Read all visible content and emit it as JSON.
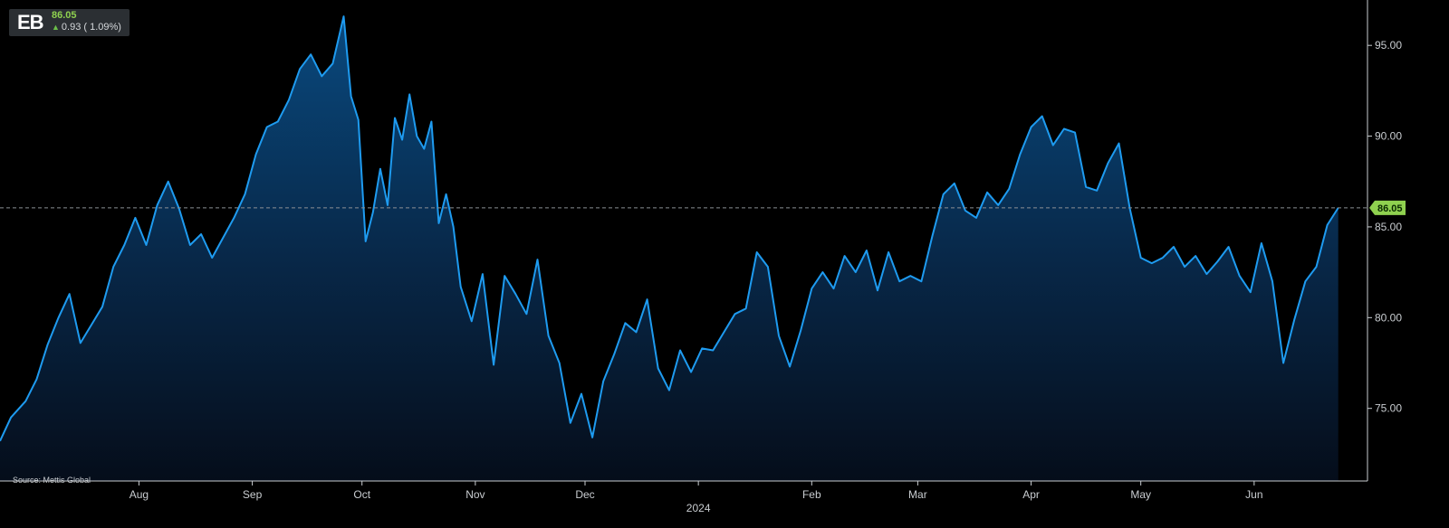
{
  "ticker": {
    "symbol": "EB",
    "price": "86.05",
    "change_arrow": "up-arrow",
    "change_text": "0.93 ( 1.09%)"
  },
  "source": "Source: Mettis Global",
  "colors": {
    "background": "#000000",
    "line": "#1e9bf0",
    "fill_top": "#0a4d85",
    "fill_bottom": "#050d1a",
    "last_price_badge": "#8fd14f",
    "positive": "#6cc04a"
  },
  "chart_data": {
    "type": "area",
    "title": "",
    "xlabel": "",
    "ylabel": "",
    "ylim": [
      71,
      97.5
    ],
    "y_axis_position": "right",
    "y_ticks": [
      "75.00",
      "80.00",
      "85.00",
      "90.00",
      "95.00"
    ],
    "x_ticks": [
      {
        "label": "Aug",
        "date": "2023-08-01"
      },
      {
        "label": "Sep",
        "date": "2023-09-01"
      },
      {
        "label": "Oct",
        "date": "2023-10-01"
      },
      {
        "label": "Nov",
        "date": "2023-11-01"
      },
      {
        "label": "Dec",
        "date": "2023-12-01"
      },
      {
        "label": "2024",
        "date": "2024-01-01"
      },
      {
        "label": "Feb",
        "date": "2024-02-01"
      },
      {
        "label": "Mar",
        "date": "2024-03-01"
      },
      {
        "label": "Apr",
        "date": "2024-04-01"
      },
      {
        "label": "May",
        "date": "2024-05-01"
      },
      {
        "label": "Jun",
        "date": "2024-06-01"
      }
    ],
    "last_value": 86.05,
    "last_value_label": "86.05",
    "reference_line": {
      "value": 86.05,
      "style": "dashed"
    },
    "grid": false,
    "legend": "none",
    "series": [
      {
        "x": [
          "2023-06-24",
          "2023-06-27",
          "2023-07-01",
          "2023-07-04",
          "2023-07-07",
          "2023-07-10",
          "2023-07-13",
          "2023-07-16",
          "2023-07-19",
          "2023-07-22",
          "2023-07-25",
          "2023-07-28",
          "2023-07-31",
          "2023-08-03",
          "2023-08-06",
          "2023-08-09",
          "2023-08-12",
          "2023-08-15",
          "2023-08-18",
          "2023-08-21",
          "2023-08-24",
          "2023-08-27",
          "2023-08-30",
          "2023-09-02",
          "2023-09-05",
          "2023-09-08",
          "2023-09-11",
          "2023-09-14",
          "2023-09-17",
          "2023-09-20",
          "2023-09-23",
          "2023-09-26",
          "2023-09-28",
          "2023-09-30",
          "2023-10-02",
          "2023-10-04",
          "2023-10-06",
          "2023-10-08",
          "2023-10-10",
          "2023-10-12",
          "2023-10-14",
          "2023-10-16",
          "2023-10-18",
          "2023-10-20",
          "2023-10-22",
          "2023-10-24",
          "2023-10-26",
          "2023-10-28",
          "2023-10-31",
          "2023-11-03",
          "2023-11-06",
          "2023-11-09",
          "2023-11-12",
          "2023-11-15",
          "2023-11-18",
          "2023-11-21",
          "2023-11-24",
          "2023-11-27",
          "2023-11-30",
          "2023-12-03",
          "2023-12-06",
          "2023-12-09",
          "2023-12-12",
          "2023-12-15",
          "2023-12-18",
          "2023-12-21",
          "2023-12-24",
          "2023-12-27",
          "2023-12-30",
          "2024-01-02",
          "2024-01-05",
          "2024-01-08",
          "2024-01-11",
          "2024-01-14",
          "2024-01-17",
          "2024-01-20",
          "2024-01-23",
          "2024-01-26",
          "2024-01-29",
          "2024-02-01",
          "2024-02-04",
          "2024-02-07",
          "2024-02-10",
          "2024-02-13",
          "2024-02-16",
          "2024-02-19",
          "2024-02-22",
          "2024-02-25",
          "2024-02-28",
          "2024-03-02",
          "2024-03-05",
          "2024-03-08",
          "2024-03-11",
          "2024-03-14",
          "2024-03-17",
          "2024-03-20",
          "2024-03-23",
          "2024-03-26",
          "2024-03-29",
          "2024-04-01",
          "2024-04-04",
          "2024-04-07",
          "2024-04-10",
          "2024-04-13",
          "2024-04-16",
          "2024-04-19",
          "2024-04-22",
          "2024-04-25",
          "2024-04-28",
          "2024-05-01",
          "2024-05-04",
          "2024-05-07",
          "2024-05-10",
          "2024-05-13",
          "2024-05-16",
          "2024-05-19",
          "2024-05-22",
          "2024-05-25",
          "2024-05-28",
          "2024-05-31",
          "2024-06-03",
          "2024-06-06",
          "2024-06-09",
          "2024-06-12",
          "2024-06-15",
          "2024-06-18",
          "2024-06-21",
          "2024-06-24"
        ],
        "values": [
          73.2,
          74.5,
          75.4,
          76.6,
          78.5,
          80.0,
          81.3,
          78.6,
          79.6,
          80.6,
          82.8,
          84.0,
          85.5,
          84.0,
          86.2,
          87.5,
          86.0,
          84.0,
          84.6,
          83.3,
          84.4,
          85.5,
          86.8,
          89.0,
          90.5,
          90.8,
          92.0,
          93.7,
          94.5,
          93.3,
          94.0,
          96.6,
          92.2,
          90.9,
          84.2,
          85.8,
          88.2,
          86.2,
          91.0,
          89.8,
          92.3,
          90.0,
          89.3,
          90.8,
          85.2,
          86.8,
          85.0,
          81.7,
          79.8,
          82.4,
          77.4,
          82.3,
          81.3,
          80.2,
          83.2,
          79.0,
          77.5,
          74.2,
          75.8,
          73.4,
          76.5,
          78.0,
          79.7,
          79.2,
          81.0,
          77.2,
          76.0,
          78.2,
          77.0,
          78.3,
          78.2,
          79.2,
          80.2,
          80.5,
          83.6,
          82.8,
          79.0,
          77.3,
          79.3,
          81.6,
          82.5,
          81.6,
          83.4,
          82.5,
          83.7,
          81.5,
          83.6,
          82.0,
          82.3,
          82.0,
          84.5,
          86.8,
          87.4,
          85.9,
          85.5,
          86.9,
          86.2,
          87.1,
          89.0,
          90.5,
          91.1,
          89.5,
          90.4,
          90.2,
          87.2,
          87.0,
          88.5,
          89.6,
          86.0,
          83.3,
          83.0,
          83.3,
          83.9,
          82.8,
          83.4,
          82.4,
          83.1,
          83.9,
          82.3,
          81.4,
          84.1,
          82.0,
          77.5,
          79.9,
          82.0,
          82.8,
          85.1,
          86.05
        ]
      }
    ]
  }
}
